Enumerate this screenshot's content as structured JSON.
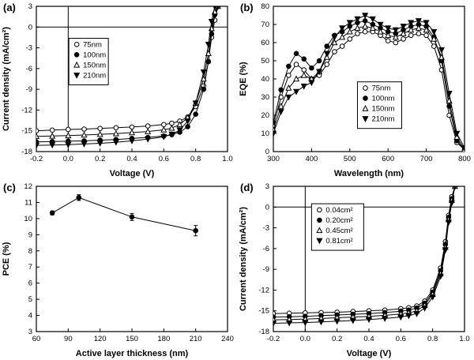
{
  "figure": {
    "background": "#ffffff",
    "line_color": "#000000"
  },
  "chart_data": [
    {
      "id": "a",
      "type": "line",
      "panel_label": "(a)",
      "xlabel": "Voltage (V)",
      "ylabel": "Current density (mA/cm²)",
      "xlim": [
        -0.2,
        1.0
      ],
      "ylim": [
        -18,
        3
      ],
      "xticks": [
        -0.2,
        0.0,
        0.2,
        0.4,
        0.6,
        0.8,
        1.0
      ],
      "xtick_labels": [
        "-0.2",
        "0.0",
        "0.2",
        "0.4",
        "0.6",
        "0.8",
        "1.0"
      ],
      "yticks": [
        -18,
        -15,
        -12,
        -9,
        -6,
        -3,
        0,
        3
      ],
      "ytick_labels": [
        "-18",
        "-15",
        "-12",
        "-9",
        "-6",
        "-3",
        "0",
        "3"
      ],
      "zero_v": true,
      "zero_h": true,
      "grid": false,
      "legend": {
        "fx": 0.17,
        "fy": 0.22,
        "w": 50
      },
      "series": [
        {
          "name": "75nm",
          "marker": "circle-open",
          "x": [
            -0.2,
            -0.1,
            0.0,
            0.1,
            0.2,
            0.3,
            0.4,
            0.5,
            0.6,
            0.65,
            0.7,
            0.75,
            0.8,
            0.85,
            0.88,
            0.9,
            0.92,
            0.94
          ],
          "y": [
            -15.0,
            -14.9,
            -14.8,
            -14.75,
            -14.65,
            -14.55,
            -14.45,
            -14.3,
            -14.1,
            -13.9,
            -13.6,
            -13.0,
            -11.5,
            -8.5,
            -5.0,
            -1.5,
            1.0,
            3.0
          ]
        },
        {
          "name": "100nm",
          "marker": "circle-filled",
          "x": [
            -0.2,
            -0.1,
            0.0,
            0.1,
            0.2,
            0.3,
            0.4,
            0.5,
            0.6,
            0.65,
            0.7,
            0.75,
            0.8,
            0.85,
            0.88,
            0.9,
            0.92,
            0.94
          ],
          "y": [
            -16.6,
            -16.55,
            -16.5,
            -16.45,
            -16.35,
            -16.25,
            -16.1,
            -15.95,
            -15.75,
            -15.55,
            -15.2,
            -14.4,
            -12.6,
            -9.0,
            -5.0,
            -1.0,
            1.8,
            3.0
          ]
        },
        {
          "name": "150nm",
          "marker": "triangle-open",
          "x": [
            -0.2,
            -0.1,
            0.0,
            0.1,
            0.2,
            0.3,
            0.4,
            0.5,
            0.6,
            0.65,
            0.7,
            0.75,
            0.8,
            0.85,
            0.88,
            0.9,
            0.92,
            0.94
          ],
          "y": [
            -15.8,
            -15.75,
            -15.7,
            -15.6,
            -15.5,
            -15.4,
            -15.25,
            -15.1,
            -14.85,
            -14.6,
            -14.1,
            -13.1,
            -11.0,
            -7.5,
            -3.8,
            -0.2,
            2.2,
            3.0
          ]
        },
        {
          "name": "210nm",
          "marker": "triangle-filled-down",
          "x": [
            -0.2,
            -0.1,
            0.0,
            0.1,
            0.2,
            0.3,
            0.4,
            0.5,
            0.6,
            0.65,
            0.7,
            0.75,
            0.8,
            0.85,
            0.88,
            0.9,
            0.92,
            0.94
          ],
          "y": [
            -17.1,
            -17.05,
            -17.0,
            -16.9,
            -16.8,
            -16.65,
            -16.45,
            -16.2,
            -15.85,
            -15.5,
            -14.9,
            -13.6,
            -11.0,
            -6.5,
            -2.5,
            0.8,
            3.0,
            3.0
          ]
        }
      ]
    },
    {
      "id": "b",
      "type": "line",
      "panel_label": "(b)",
      "xlabel": "Wavelength (nm)",
      "ylabel": "EQE (%)",
      "xlim": [
        300,
        800
      ],
      "ylim": [
        0,
        80
      ],
      "xticks": [
        300,
        400,
        500,
        600,
        700,
        800
      ],
      "xtick_labels": [
        "300",
        "400",
        "500",
        "600",
        "700",
        "800"
      ],
      "yticks": [
        0,
        10,
        20,
        30,
        40,
        50,
        60,
        70,
        80
      ],
      "ytick_labels": [
        "0",
        "10",
        "20",
        "30",
        "40",
        "50",
        "60",
        "70",
        "80"
      ],
      "zero_v": false,
      "zero_h": false,
      "grid": false,
      "legend": {
        "fx": 0.44,
        "fy": 0.52,
        "w": 56
      },
      "series": [
        {
          "name": "75nm",
          "marker": "circle-open",
          "x": [
            300,
            320,
            340,
            360,
            380,
            400,
            420,
            440,
            460,
            480,
            500,
            520,
            540,
            560,
            580,
            600,
            620,
            640,
            660,
            680,
            700,
            720,
            740,
            760,
            780,
            800
          ],
          "y": [
            14,
            30,
            42,
            48,
            45,
            40,
            42,
            48,
            55,
            58,
            62,
            65,
            66,
            66,
            64,
            61,
            60,
            62,
            64,
            65,
            64,
            58,
            45,
            20,
            5,
            1
          ]
        },
        {
          "name": "100nm",
          "marker": "circle-filled",
          "x": [
            300,
            320,
            340,
            360,
            380,
            400,
            420,
            440,
            460,
            480,
            500,
            520,
            540,
            560,
            580,
            600,
            620,
            640,
            660,
            680,
            700,
            720,
            740,
            760,
            780,
            800
          ],
          "y": [
            16,
            34,
            47,
            54,
            51,
            46,
            50,
            58,
            64,
            66,
            69,
            71,
            72,
            70,
            68,
            66,
            65,
            67,
            69,
            70,
            69,
            63,
            50,
            25,
            6,
            1
          ]
        },
        {
          "name": "150nm",
          "marker": "triangle-open",
          "x": [
            300,
            320,
            340,
            360,
            380,
            400,
            420,
            440,
            460,
            480,
            500,
            520,
            540,
            560,
            580,
            600,
            620,
            640,
            660,
            680,
            700,
            720,
            740,
            760,
            780,
            800
          ],
          "y": [
            12,
            25,
            35,
            40,
            42,
            40,
            44,
            52,
            60,
            63,
            66,
            68,
            69,
            68,
            66,
            64,
            63,
            65,
            67,
            68,
            67,
            62,
            52,
            28,
            8,
            1
          ]
        },
        {
          "name": "210nm",
          "marker": "triangle-filled-down",
          "x": [
            300,
            320,
            340,
            360,
            380,
            400,
            420,
            440,
            460,
            480,
            500,
            520,
            540,
            560,
            580,
            600,
            620,
            640,
            660,
            680,
            700,
            720,
            740,
            760,
            780,
            800
          ],
          "y": [
            10,
            22,
            30,
            33,
            36,
            38,
            44,
            54,
            63,
            68,
            71,
            73,
            75,
            73,
            70,
            68,
            67,
            69,
            71,
            72,
            71,
            66,
            56,
            32,
            10,
            2
          ]
        }
      ]
    },
    {
      "id": "c",
      "type": "line",
      "panel_label": "(c)",
      "xlabel": "Active layer thickness (nm)",
      "ylabel": "PCE (%)",
      "xlim": [
        60,
        240
      ],
      "ylim": [
        3,
        12
      ],
      "xticks": [
        60,
        90,
        120,
        150,
        180,
        210,
        240
      ],
      "xtick_labels": [
        "60",
        "90",
        "120",
        "150",
        "180",
        "210",
        "240"
      ],
      "yticks": [
        3,
        4,
        5,
        6,
        7,
        8,
        9,
        10,
        11,
        12
      ],
      "ytick_labels": [
        "3",
        "4",
        "5",
        "6",
        "7",
        "8",
        "9",
        "10",
        "11",
        "12"
      ],
      "zero_v": false,
      "zero_h": false,
      "grid": false,
      "legend": null,
      "series": [
        {
          "name": "PCE",
          "marker": "circle-filled",
          "x": [
            75,
            100,
            150,
            210
          ],
          "y": [
            10.35,
            11.3,
            10.1,
            9.25
          ],
          "yerr": [
            0.12,
            0.18,
            0.22,
            0.32
          ]
        }
      ]
    },
    {
      "id": "d",
      "type": "line",
      "panel_label": "(d)",
      "xlabel": "Voltage (V)",
      "ylabel": "Current density (mA/cm²)",
      "xlim": [
        -0.2,
        1.0
      ],
      "ylim": [
        -18,
        3
      ],
      "xticks": [
        -0.2,
        0.0,
        0.2,
        0.4,
        0.6,
        0.8,
        1.0
      ],
      "xtick_labels": [
        "-0.2",
        "0.0",
        "0.2",
        "0.4",
        "0.6",
        "0.8",
        "1.0"
      ],
      "yticks": [
        -18,
        -15,
        -12,
        -9,
        -6,
        -3,
        0,
        3
      ],
      "ytick_labels": [
        "-18",
        "-15",
        "-12",
        "-9",
        "-6",
        "-3",
        "0",
        "3"
      ],
      "zero_v": true,
      "zero_h": true,
      "grid": false,
      "legend": {
        "fx": 0.2,
        "fy": 0.12,
        "w": 66
      },
      "series": [
        {
          "name": "0.04cm²",
          "marker": "circle-open",
          "x": [
            -0.2,
            -0.1,
            0.0,
            0.1,
            0.2,
            0.3,
            0.4,
            0.5,
            0.6,
            0.65,
            0.7,
            0.75,
            0.8,
            0.85,
            0.88,
            0.9,
            0.92,
            0.94
          ],
          "y": [
            -15.4,
            -15.35,
            -15.3,
            -15.25,
            -15.2,
            -15.1,
            -15.0,
            -14.9,
            -14.7,
            -14.55,
            -14.3,
            -13.6,
            -12.0,
            -8.8,
            -5.0,
            -1.2,
            1.5,
            3.0
          ]
        },
        {
          "name": "0.20cm²",
          "marker": "circle-filled",
          "x": [
            -0.2,
            -0.1,
            0.0,
            0.1,
            0.2,
            0.3,
            0.4,
            0.5,
            0.6,
            0.65,
            0.7,
            0.75,
            0.8,
            0.85,
            0.88,
            0.9,
            0.92,
            0.94
          ],
          "y": [
            -15.9,
            -15.85,
            -15.8,
            -15.7,
            -15.6,
            -15.5,
            -15.4,
            -15.25,
            -15.05,
            -14.9,
            -14.6,
            -13.9,
            -12.3,
            -9.2,
            -5.4,
            -1.5,
            1.2,
            3.0
          ]
        },
        {
          "name": "0.45cm²",
          "marker": "triangle-open",
          "x": [
            -0.2,
            -0.1,
            0.0,
            0.1,
            0.2,
            0.3,
            0.4,
            0.5,
            0.6,
            0.65,
            0.7,
            0.75,
            0.8,
            0.85,
            0.88,
            0.9,
            0.92,
            0.94
          ],
          "y": [
            -16.3,
            -16.25,
            -16.2,
            -16.1,
            -16.0,
            -15.9,
            -15.8,
            -15.65,
            -15.45,
            -15.3,
            -15.0,
            -14.2,
            -12.6,
            -9.6,
            -5.8,
            -1.8,
            1.0,
            3.0
          ]
        },
        {
          "name": "0.81cm²",
          "marker": "triangle-filled-down",
          "x": [
            -0.2,
            -0.1,
            0.0,
            0.1,
            0.2,
            0.3,
            0.4,
            0.5,
            0.6,
            0.65,
            0.7,
            0.75,
            0.8,
            0.85,
            0.88,
            0.9,
            0.92,
            0.94
          ],
          "y": [
            -16.8,
            -16.75,
            -16.7,
            -16.6,
            -16.5,
            -16.4,
            -16.25,
            -16.1,
            -15.9,
            -15.7,
            -15.4,
            -14.6,
            -13.0,
            -10.0,
            -6.2,
            -2.2,
            0.6,
            3.0
          ]
        }
      ]
    }
  ]
}
